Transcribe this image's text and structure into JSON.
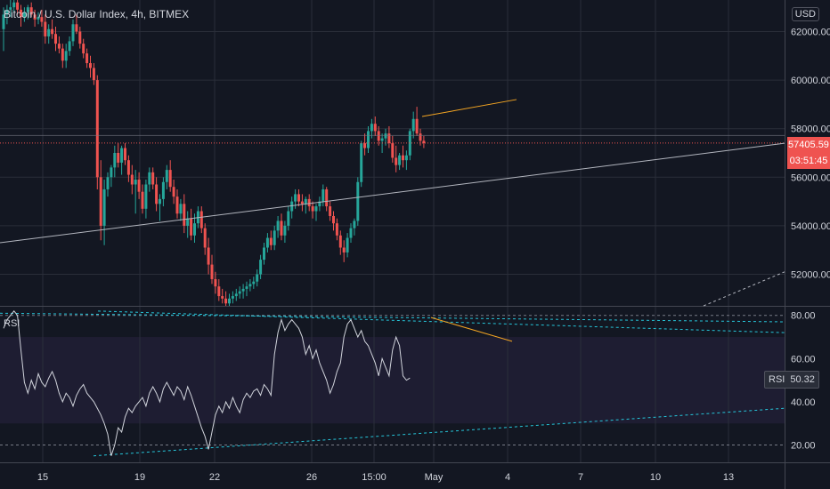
{
  "title": "Bitcoin / U.S. Dollar Index, 4h, BITMEX",
  "currency": "USD",
  "rsi_label": "RSI",
  "rsi_value_name": "RSI",
  "rsi_value": "50.32",
  "last_price": "57405.59",
  "countdown": "03:51:45",
  "colors": {
    "up": "#26a69a",
    "down": "#ef5350",
    "bg": "#131722",
    "grid": "#2a2e39",
    "rsi_line": "#d1d4dc",
    "rsi_band": "#7e57c2",
    "trendline": "#b2b5be",
    "orange": "#f5a623",
    "teal_dash": "#26c6da"
  },
  "chart_data": [
    {
      "type": "candlestick",
      "title": "Bitcoin / U.S. Dollar Index, 4h, BITMEX",
      "y_ticks": [
        "52000.00",
        "54000.00",
        "56000.00",
        "58000.00",
        "60000.00",
        "62000.00"
      ],
      "ylim": [
        50700,
        63300
      ],
      "x_ticks": [
        "15",
        "19",
        "22",
        "26",
        "15:00",
        "May",
        "4",
        "7",
        "10",
        "13"
      ],
      "grid": true,
      "candles": [
        [
          62100,
          63000,
          61200,
          62700
        ],
        [
          62700,
          63100,
          62300,
          62900
        ],
        [
          62900,
          63300,
          62600,
          63000
        ],
        [
          63000,
          63400,
          62800,
          63200
        ],
        [
          63200,
          63400,
          62700,
          62900
        ],
        [
          62900,
          63100,
          62200,
          62600
        ],
        [
          62600,
          63000,
          62400,
          62800
        ],
        [
          62800,
          63100,
          62500,
          63000
        ],
        [
          63000,
          63200,
          62600,
          62700
        ],
        [
          62700,
          62900,
          62200,
          62500
        ],
        [
          62500,
          62800,
          62300,
          62600
        ],
        [
          62600,
          62900,
          62200,
          62400
        ],
        [
          62400,
          62700,
          61500,
          61800
        ],
        [
          61800,
          62300,
          61500,
          62100
        ],
        [
          62100,
          62500,
          61700,
          61900
        ],
        [
          61900,
          62200,
          61200,
          61500
        ],
        [
          61500,
          61800,
          61100,
          61300
        ],
        [
          61300,
          61500,
          60500,
          60800
        ],
        [
          60800,
          61500,
          60500,
          61200
        ],
        [
          61200,
          61800,
          61000,
          61600
        ],
        [
          61600,
          62500,
          61400,
          62300
        ],
        [
          62300,
          62700,
          61900,
          62000
        ],
        [
          62000,
          62200,
          61300,
          61500
        ],
        [
          61500,
          61700,
          60900,
          61100
        ],
        [
          61100,
          61300,
          60500,
          60700
        ],
        [
          60700,
          61000,
          60100,
          60500
        ],
        [
          60500,
          60700,
          59800,
          60000
        ],
        [
          60000,
          60200,
          55500,
          56000
        ],
        [
          56000,
          56700,
          53400,
          54000
        ],
        [
          54000,
          55900,
          53200,
          55500
        ],
        [
          55500,
          56200,
          55200,
          56000
        ],
        [
          56000,
          56500,
          55600,
          56400
        ],
        [
          56400,
          57300,
          56000,
          57000
        ],
        [
          57000,
          57400,
          56400,
          56600
        ],
        [
          56600,
          57300,
          56100,
          57200
        ],
        [
          57200,
          57400,
          56500,
          56700
        ],
        [
          56700,
          56900,
          55800,
          56100
        ],
        [
          56100,
          56500,
          55300,
          55700
        ],
        [
          55700,
          56300,
          54500,
          55900
        ],
        [
          55900,
          56200,
          55100,
          55400
        ],
        [
          55400,
          55700,
          54500,
          54700
        ],
        [
          54700,
          55900,
          54300,
          55700
        ],
        [
          55700,
          56400,
          55400,
          56200
        ],
        [
          56200,
          56400,
          55500,
          55700
        ],
        [
          55700,
          56000,
          54600,
          54900
        ],
        [
          54900,
          55300,
          54200,
          55100
        ],
        [
          55100,
          56000,
          54800,
          55800
        ],
        [
          55800,
          56500,
          55500,
          56300
        ],
        [
          56300,
          56700,
          55400,
          55600
        ],
        [
          55600,
          55900,
          54900,
          55200
        ],
        [
          55200,
          55500,
          54300,
          54500
        ],
        [
          54500,
          55100,
          54200,
          54900
        ],
        [
          54900,
          55300,
          53700,
          54000
        ],
        [
          54000,
          54600,
          53500,
          54300
        ],
        [
          54300,
          54700,
          53400,
          53600
        ],
        [
          53600,
          54500,
          53300,
          54100
        ],
        [
          54100,
          54800,
          53900,
          54600
        ],
        [
          54600,
          54800,
          53700,
          53900
        ],
        [
          53900,
          54100,
          52800,
          53100
        ],
        [
          53100,
          53500,
          52000,
          52400
        ],
        [
          52400,
          52800,
          51600,
          51800
        ],
        [
          51800,
          52100,
          51200,
          51500
        ],
        [
          51500,
          51800,
          50900,
          51100
        ],
        [
          51100,
          51400,
          50800,
          51000
        ],
        [
          51000,
          51300,
          50700,
          50800
        ],
        [
          50800,
          51200,
          50700,
          51000
        ],
        [
          51000,
          51300,
          50800,
          51100
        ],
        [
          51100,
          51400,
          50900,
          51200
        ],
        [
          51200,
          51500,
          51000,
          51300
        ],
        [
          51300,
          51600,
          51000,
          51400
        ],
        [
          51400,
          51700,
          51100,
          51500
        ],
        [
          51500,
          51800,
          51300,
          51600
        ],
        [
          51600,
          51900,
          51400,
          51700
        ],
        [
          51700,
          52200,
          51500,
          52000
        ],
        [
          52000,
          52800,
          51800,
          52600
        ],
        [
          52600,
          53300,
          52400,
          53100
        ],
        [
          53100,
          53700,
          52900,
          53500
        ],
        [
          53500,
          53800,
          53000,
          53200
        ],
        [
          53200,
          54000,
          53000,
          53800
        ],
        [
          53800,
          54400,
          53500,
          54200
        ],
        [
          54200,
          54500,
          53400,
          53600
        ],
        [
          53600,
          54200,
          53300,
          54000
        ],
        [
          54000,
          54800,
          53800,
          54600
        ],
        [
          54600,
          55200,
          54300,
          55000
        ],
        [
          55000,
          55500,
          54700,
          55300
        ],
        [
          55300,
          55500,
          54800,
          55000
        ],
        [
          55000,
          55300,
          54600,
          54900
        ],
        [
          54900,
          55200,
          54500,
          55100
        ],
        [
          55100,
          55300,
          54600,
          54800
        ],
        [
          54800,
          55000,
          54300,
          54600
        ],
        [
          54600,
          54900,
          54200,
          54800
        ],
        [
          54800,
          55200,
          54600,
          55000
        ],
        [
          55000,
          55700,
          54800,
          55500
        ],
        [
          55500,
          55600,
          54600,
          54800
        ],
        [
          54800,
          55000,
          54200,
          54400
        ],
        [
          54400,
          54600,
          53800,
          54100
        ],
        [
          54100,
          54300,
          53400,
          53600
        ],
        [
          53600,
          53800,
          52800,
          53100
        ],
        [
          53100,
          53400,
          52500,
          52900
        ],
        [
          52900,
          53700,
          52700,
          53500
        ],
        [
          53500,
          54100,
          53300,
          53900
        ],
        [
          53900,
          54300,
          53600,
          54200
        ],
        [
          54200,
          56000,
          54000,
          55800
        ],
        [
          55800,
          57500,
          55600,
          57400
        ],
        [
          57400,
          57800,
          56900,
          57200
        ],
        [
          57200,
          58100,
          57000,
          57900
        ],
        [
          57900,
          58400,
          57600,
          58200
        ],
        [
          58200,
          58500,
          57700,
          57900
        ],
        [
          57900,
          58100,
          57300,
          57500
        ],
        [
          57500,
          57800,
          57000,
          57600
        ],
        [
          57600,
          58000,
          57300,
          57800
        ],
        [
          57800,
          58100,
          57200,
          57400
        ],
        [
          57400,
          57700,
          56600,
          56800
        ],
        [
          56800,
          57300,
          56200,
          56500
        ],
        [
          56500,
          57000,
          56300,
          56900
        ],
        [
          56900,
          57300,
          56400,
          56700
        ],
        [
          56700,
          57100,
          56300,
          56900
        ],
        [
          56900,
          58000,
          56700,
          57900
        ],
        [
          57900,
          58700,
          57600,
          58400
        ],
        [
          58400,
          58900,
          57700,
          57800
        ],
        [
          57800,
          58000,
          57300,
          57500
        ],
        [
          57500,
          57700,
          57200,
          57400
        ]
      ],
      "x_start_candle": 0
    },
    {
      "type": "line",
      "title": "RSI",
      "y_ticks": [
        "20.00",
        "40.00",
        "60.00",
        "80.00"
      ],
      "ylim": [
        12,
        84
      ],
      "bands": [
        30,
        70
      ],
      "values": [
        74,
        78,
        80,
        82,
        80,
        64,
        49,
        44,
        50,
        46,
        53,
        49,
        47,
        51,
        54,
        50,
        44,
        40,
        44,
        42,
        38,
        43,
        46,
        48,
        44,
        42,
        40,
        37,
        34,
        30,
        25,
        15,
        20,
        28,
        26,
        33,
        37,
        35,
        38,
        40,
        42,
        38,
        44,
        47,
        44,
        40,
        46,
        49,
        46,
        43,
        47,
        45,
        41,
        47,
        43,
        38,
        33,
        28,
        24,
        18,
        26,
        34,
        38,
        35,
        40,
        37,
        42,
        38,
        35,
        41,
        44,
        42,
        45,
        46,
        43,
        48,
        46,
        43,
        62,
        72,
        78,
        73,
        76,
        78,
        76,
        74,
        70,
        62,
        66,
        60,
        64,
        58,
        54,
        50,
        44,
        48,
        54,
        58,
        70,
        76,
        78,
        74,
        70,
        73,
        68,
        66,
        62,
        58,
        52,
        60,
        56,
        52,
        64,
        70,
        66,
        52,
        50,
        51
      ]
    }
  ]
}
